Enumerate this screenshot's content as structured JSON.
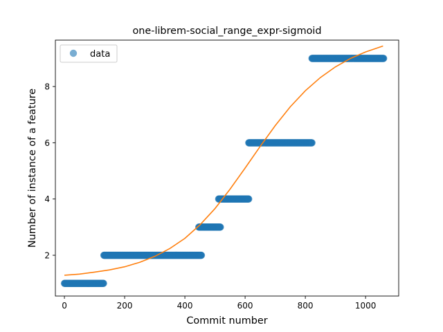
{
  "chart_data": {
    "type": "scatter",
    "title": "one-librem-social_range_expr-sigmoid",
    "xlabel": "Commit number",
    "ylabel": "Number of instance of a feature",
    "xlim": [
      -30,
      1110
    ],
    "ylim": [
      0.55,
      9.65
    ],
    "x_ticks": [
      0,
      200,
      400,
      600,
      800,
      1000
    ],
    "y_ticks": [
      2,
      4,
      6,
      8
    ],
    "grid": false,
    "legend": {
      "position": "top-left",
      "entries": [
        "data"
      ]
    },
    "series": [
      {
        "name": "data",
        "kind": "points",
        "color": "#1f77b4",
        "alpha": 0.6,
        "segments": [
          {
            "y": 1,
            "x_start": 0,
            "x_end": 130
          },
          {
            "y": 2,
            "x_start": 131,
            "x_end": 455
          },
          {
            "y": 3,
            "x_start": 446,
            "x_end": 518
          },
          {
            "y": 4,
            "x_start": 512,
            "x_end": 612
          },
          {
            "y": 6,
            "x_start": 612,
            "x_end": 822
          },
          {
            "y": 9,
            "x_start": 822,
            "x_end": 1060
          }
        ]
      },
      {
        "kind": "line",
        "color": "#ff7f0e",
        "x": [
          0,
          50,
          100,
          150,
          200,
          250,
          300,
          350,
          400,
          450,
          500,
          550,
          600,
          650,
          700,
          750,
          800,
          850,
          900,
          950,
          1000,
          1058
        ],
        "y": [
          1.29,
          1.33,
          1.4,
          1.48,
          1.59,
          1.75,
          1.96,
          2.24,
          2.6,
          3.08,
          3.66,
          4.35,
          5.1,
          5.87,
          6.61,
          7.28,
          7.85,
          8.32,
          8.7,
          9.0,
          9.23,
          9.44
        ]
      }
    ]
  }
}
